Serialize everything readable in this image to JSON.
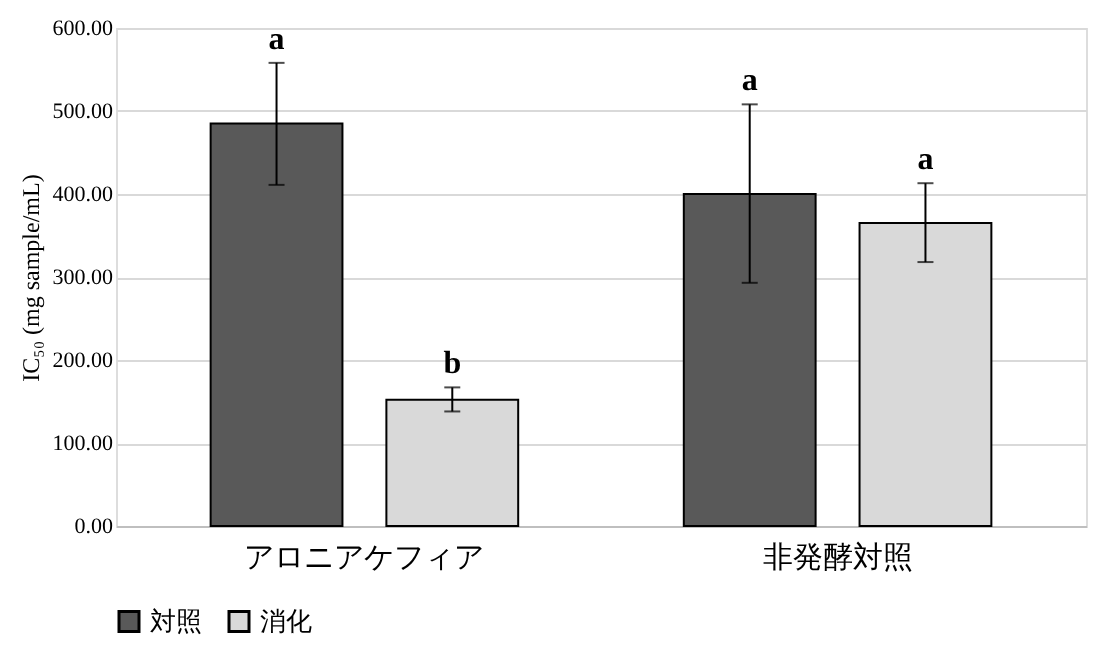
{
  "chart_data": {
    "type": "bar",
    "ylabel": "IC₅₀ (mg sample/mL)",
    "categories": [
      "アロニアケフィア",
      "非発酵対照"
    ],
    "series": [
      {
        "name": "対照",
        "color": "#595959",
        "values": [
          485,
          400
        ],
        "errors": [
          [
            411,
            558
          ],
          [
            293,
            508
          ]
        ]
      },
      {
        "name": "消化",
        "color": "#d9d9d9",
        "values": [
          152,
          365
        ],
        "errors": [
          [
            138,
            167
          ],
          [
            318,
            413
          ]
        ]
      }
    ],
    "ylim": [
      0,
      600
    ],
    "yticks": [
      {
        "value": 0,
        "label": "0.00"
      },
      {
        "value": 100,
        "label": "100.00"
      },
      {
        "value": 200,
        "label": "200.00"
      },
      {
        "value": 300,
        "label": "300.00"
      },
      {
        "value": 400,
        "label": "400.00"
      },
      {
        "value": 500,
        "label": "500.00"
      },
      {
        "value": 600,
        "label": "600.00"
      }
    ],
    "annotations": [
      "a",
      "b",
      "a",
      "a"
    ],
    "grid": "y",
    "legend": "bottom"
  }
}
